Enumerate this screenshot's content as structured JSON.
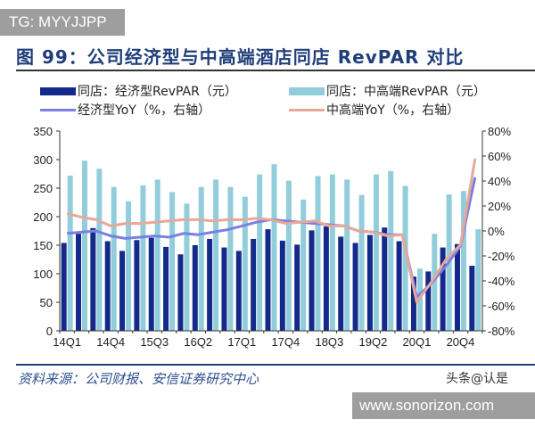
{
  "watermark_top": "TG: MYYJJPP",
  "watermark_bottom": "www.sonorizon.com",
  "title": "图 99：公司经济型与中高端酒店同店 RevPAR 对比",
  "source": "资料来源：公司财报、安信证券研究中心",
  "credit": "头条@认是",
  "chart_data": {
    "type": "bar+line",
    "categories": [
      "14Q1",
      "14Q2",
      "14Q3",
      "14Q4",
      "15Q1",
      "15Q2",
      "15Q3",
      "15Q4",
      "16Q1",
      "16Q2",
      "16Q3",
      "16Q4",
      "17Q1",
      "17Q2",
      "17Q3",
      "17Q4",
      "18Q1",
      "18Q2",
      "18Q3",
      "18Q4",
      "19Q1",
      "19Q2",
      "19Q3",
      "19Q4",
      "20Q1",
      "20Q2",
      "20Q3",
      "20Q4",
      "21Q1"
    ],
    "tick_labels": [
      "14Q1",
      "14Q4",
      "15Q3",
      "16Q2",
      "17Q1",
      "17Q4",
      "18Q3",
      "19Q2",
      "20Q1",
      "20Q4"
    ],
    "left_axis": {
      "range": [
        0,
        350
      ],
      "ticks": [
        "0",
        "50",
        "100",
        "150",
        "200",
        "250",
        "300",
        "350"
      ]
    },
    "right_axis": {
      "range": [
        -80,
        80
      ],
      "ticks": [
        "-80%",
        "-60%",
        "-40%",
        "-20%",
        "0%",
        "20%",
        "40%",
        "60%",
        "80%"
      ]
    },
    "legend_placement": "top",
    "series": [
      {
        "name": "同店：经济型RevPAR（元）",
        "kind": "bar",
        "axis": "left",
        "color": "#132a8a",
        "values": [
          154,
          170,
          180,
          157,
          140,
          159,
          163,
          147,
          134,
          150,
          161,
          146,
          140,
          161,
          178,
          158,
          151,
          176,
          183,
          165,
          154,
          168,
          181,
          157,
          95,
          104,
          146,
          152,
          114
        ]
      },
      {
        "name": "同店：中高端RevPAR（元）",
        "kind": "bar",
        "axis": "left",
        "color": "#92cddc",
        "values": [
          272,
          298,
          284,
          252,
          227,
          255,
          265,
          243,
          223,
          252,
          265,
          252,
          235,
          274,
          292,
          263,
          230,
          271,
          274,
          265,
          238,
          274,
          280,
          254,
          109,
          170,
          239,
          245,
          178
        ]
      },
      {
        "name": "经济型YoY（%，右轴）",
        "kind": "line",
        "axis": "right",
        "color": "#7b7fe0",
        "values": [
          -2,
          -1,
          0,
          -4,
          -6,
          -5,
          -4,
          -5,
          -2,
          -3,
          -1,
          1,
          4,
          7,
          9,
          8,
          7,
          6,
          5,
          4,
          0,
          -1,
          -3,
          -3,
          -53,
          -42,
          -28,
          -12,
          43
        ]
      },
      {
        "name": "中高端YoY（%，右轴）",
        "kind": "line",
        "axis": "right",
        "color": "#e8a898",
        "values": [
          14,
          11,
          9,
          4,
          6,
          6,
          7,
          8,
          9,
          9,
          8,
          9,
          9,
          10,
          9,
          6,
          7,
          8,
          4,
          4,
          0,
          -1,
          -4,
          -3,
          -57,
          -41,
          -23,
          -11,
          58
        ]
      }
    ]
  }
}
